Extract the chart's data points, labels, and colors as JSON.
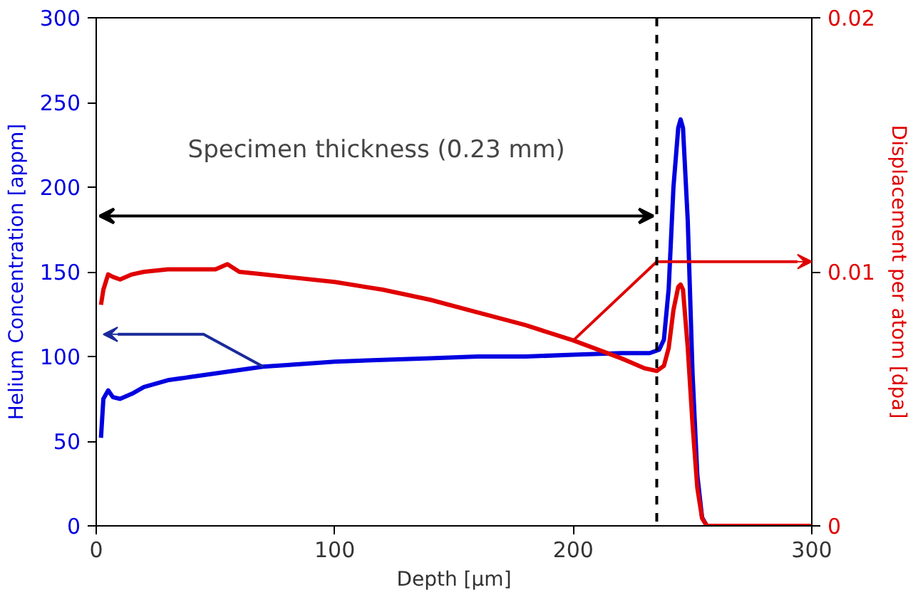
{
  "chart_data": {
    "type": "line",
    "xlabel": "Depth [μm]",
    "ylabel": "Helium Concentration [appm]",
    "y2label": "Displacement per atom [dpa]",
    "annotations": [
      "Specimen thickness (0.23 mm)"
    ],
    "xlim": [
      0,
      300
    ],
    "xticks": [
      0,
      100,
      200,
      300
    ],
    "ylim": [
      0,
      300
    ],
    "yticks": [
      0,
      50,
      100,
      150,
      200,
      250,
      300
    ],
    "y2lim": [
      0,
      0.02
    ],
    "y2ticks": [
      0,
      0.01,
      0.02
    ],
    "grid": false,
    "marker": "none",
    "line_style": "solid",
    "ref_lines": [
      {
        "axis": "x",
        "value": 235,
        "label": null,
        "color": "#000000",
        "line_style": "dashed"
      }
    ],
    "series": [
      {
        "color": "#0000e0",
        "x": [
          2,
          3,
          5,
          7,
          10,
          15,
          20,
          30,
          40,
          50,
          60,
          70,
          80,
          100,
          120,
          140,
          160,
          180,
          200,
          220,
          232,
          236,
          238,
          240,
          242,
          244,
          245,
          246,
          248,
          250,
          252,
          254,
          256
        ],
        "values": [
          52,
          75,
          80,
          76,
          75,
          78,
          82,
          86,
          88,
          90,
          92,
          94,
          95,
          97,
          98,
          99,
          100,
          100,
          101,
          102,
          102,
          104,
          110,
          140,
          200,
          235,
          240,
          235,
          180,
          90,
          30,
          5,
          0
        ]
      },
      {
        "color": "#e00000",
        "axis": "y2",
        "x": [
          2,
          3,
          5,
          7,
          10,
          15,
          20,
          30,
          40,
          50,
          55,
          60,
          70,
          80,
          100,
          120,
          140,
          160,
          180,
          200,
          220,
          230,
          235,
          238,
          240,
          242,
          244,
          245,
          246,
          248,
          250,
          252,
          254,
          256,
          300
        ],
        "values": [
          0.0087,
          0.0093,
          0.0099,
          0.0098,
          0.0097,
          0.0099,
          0.01,
          0.0101,
          0.0101,
          0.0101,
          0.0103,
          0.01,
          0.0099,
          0.0098,
          0.0096,
          0.0093,
          0.0089,
          0.0084,
          0.0079,
          0.0073,
          0.0066,
          0.0062,
          0.0061,
          0.0063,
          0.007,
          0.0085,
          0.0094,
          0.0095,
          0.0093,
          0.007,
          0.004,
          0.0015,
          0.0003,
          0,
          0
        ]
      }
    ]
  }
}
